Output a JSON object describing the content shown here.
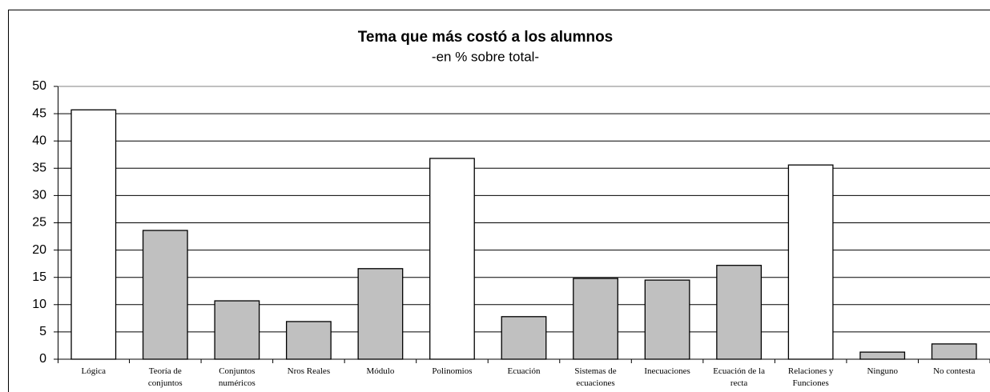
{
  "chart_data": {
    "type": "bar",
    "title": "Tema que más costó a los alumnos",
    "subtitle": "-en % sobre total-",
    "categories": [
      "Lógica",
      "Teoría de conjuntos",
      "Conjuntos numéricos",
      "Nros Reales",
      "Módulo",
      "Polinomios",
      "Ecuación",
      "Sistemas de ecuaciones",
      "Inecuaciones",
      "Ecuación de la recta",
      "Relaciones y Funciones",
      "Ninguno",
      "No contesta"
    ],
    "values": [
      45.7,
      23.6,
      10.7,
      6.9,
      16.6,
      36.8,
      7.8,
      14.8,
      14.5,
      17.2,
      35.6,
      1.3,
      2.8
    ],
    "colors": [
      "#ffffff",
      "#c0c0c0",
      "#c0c0c0",
      "#c0c0c0",
      "#c0c0c0",
      "#ffffff",
      "#c0c0c0",
      "#c0c0c0",
      "#c0c0c0",
      "#c0c0c0",
      "#ffffff",
      "#c0c0c0",
      "#c0c0c0"
    ],
    "ylim": [
      0,
      50
    ],
    "yticks": [
      0,
      5,
      10,
      15,
      20,
      25,
      30,
      35,
      40,
      45,
      50
    ],
    "grid": true
  }
}
